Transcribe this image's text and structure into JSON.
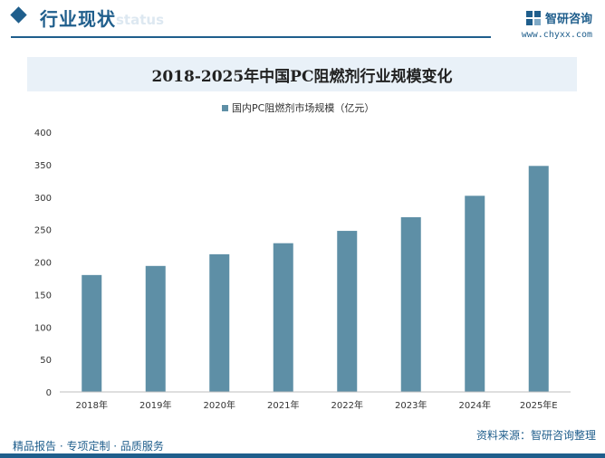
{
  "header": {
    "section_title": "行业现状",
    "section_ghost": "status",
    "brand_name": "智研咨询",
    "brand_url": "www.chyxx.com"
  },
  "chart_data": {
    "type": "bar",
    "title": "2018-2025年中国PC阻燃剂行业规模变化",
    "categories": [
      "2018年",
      "2019年",
      "2020年",
      "2021年",
      "2022年",
      "2023年",
      "2024年",
      "2025年E"
    ],
    "series": [
      {
        "name": "国内PC阻燃剂市场规模（亿元）",
        "values": [
          180,
          194,
          212,
          229,
          248,
          269,
          302,
          348
        ]
      }
    ],
    "ylim": [
      0,
      400
    ],
    "yticks": [
      0,
      50,
      100,
      150,
      200,
      250,
      300,
      350,
      400
    ],
    "xlabel": "",
    "ylabel": "",
    "grid": false,
    "legend_position": "top-center",
    "bar_color": "#5e8fa6"
  },
  "footer": {
    "left": "精品报告 · 专项定制 · 品质服务",
    "right": "资料来源：智研咨询整理"
  }
}
